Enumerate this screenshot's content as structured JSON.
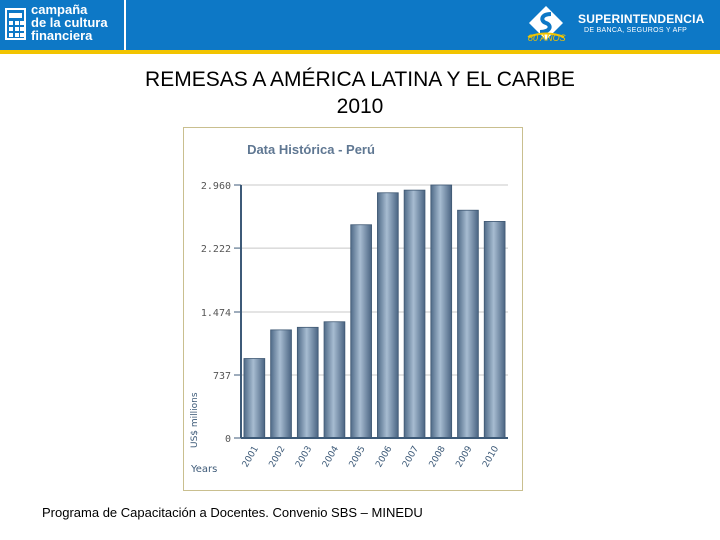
{
  "header": {
    "campaign_line1": "campaña",
    "campaign_line2": "de la cultura",
    "campaign_line3": "financiera",
    "sbs_name": "SUPERINTENDENCIA",
    "sbs_subtitle": "DE BANCA, SEGUROS Y AFP",
    "sbs_anniversary": "80 AÑOS",
    "colors": {
      "banner": "#0d78c6",
      "stripe": "#f2c400"
    }
  },
  "slide": {
    "title_line1": "REMESAS A AMÉRICA LATINA Y EL CARIBE",
    "title_line2": "2010"
  },
  "footer": {
    "text": "Programa de Capacitación a Docentes. Convenio SBS – MINEDU"
  },
  "chart_data": {
    "type": "bar",
    "title": "Data Histórica - Perú",
    "xlabel": "Years",
    "ylabel": "US$ millions",
    "categories": [
      "2001",
      "2002",
      "2003",
      "2004",
      "2005",
      "2006",
      "2007",
      "2008",
      "2009",
      "2010"
    ],
    "values": [
      930,
      1265,
      1295,
      1360,
      2495,
      2869,
      2900,
      2960,
      2665,
      2534
    ],
    "ylim": [
      0,
      2960
    ],
    "yticks": [
      0,
      737,
      1474,
      2222,
      2960
    ],
    "ytick_labels": [
      "0",
      "737",
      "1.474",
      "2.222",
      "2.960"
    ],
    "grid": true,
    "colors": {
      "bar": "#6d8aa8",
      "axis": "#3d5a78",
      "title": "#5f7792",
      "grid": "#c8c8c8"
    }
  }
}
